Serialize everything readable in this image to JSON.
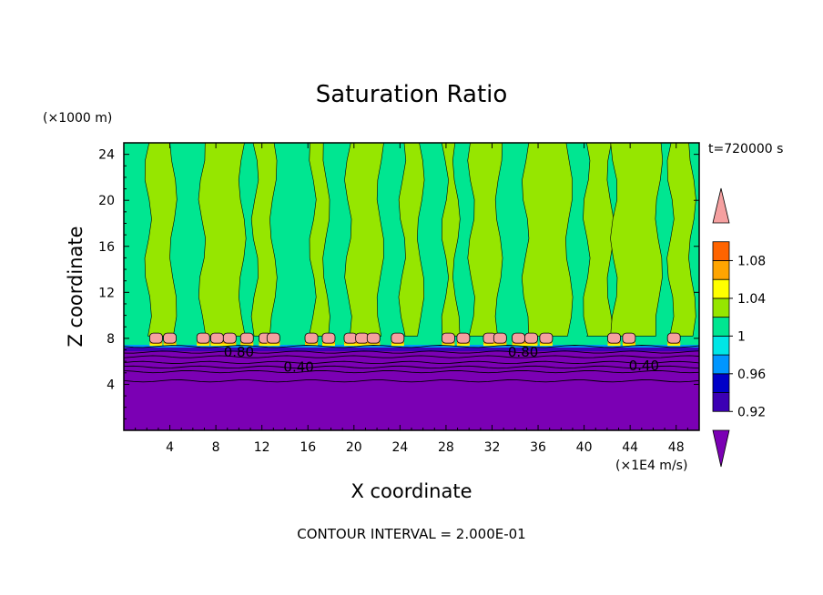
{
  "chart_data": {
    "type": "heatmap",
    "title": "Saturation Ratio",
    "xlabel": "X coordinate",
    "ylabel": "Z coordinate",
    "x_unit": "(×1E4 m/s)",
    "y_unit": "(×1000 m)",
    "time_label": "t=720000 s",
    "footer": "CONTOUR INTERVAL = 2.000E-01",
    "xlim": [
      0,
      50
    ],
    "ylim": [
      0,
      25
    ],
    "x_ticks": [
      4,
      8,
      12,
      16,
      20,
      24,
      28,
      32,
      36,
      40,
      44,
      48
    ],
    "x_tick_labels": [
      "4",
      "8",
      "12",
      "16",
      "20",
      "24",
      "28",
      "32",
      "36",
      "40",
      "44",
      "48"
    ],
    "y_ticks": [
      4,
      8,
      12,
      16,
      20,
      24
    ],
    "y_tick_labels": [
      "4",
      "8",
      "12",
      "16",
      "20",
      "24"
    ],
    "contour_labels": [
      {
        "text": "0.80",
        "x": 10,
        "z": 6.8
      },
      {
        "text": "0.40",
        "x": 15.2,
        "z": 5.5
      },
      {
        "text": "0.80",
        "x": 34.7,
        "z": 6.8
      },
      {
        "text": "0.40",
        "x": 45.2,
        "z": 5.6
      }
    ],
    "colorbar": {
      "levels": [
        0.92,
        0.94,
        0.96,
        0.98,
        1.0,
        1.02,
        1.04,
        1.06,
        1.08,
        1.1
      ],
      "colors": [
        "#7b00b4",
        "#3c00b4",
        "#0000c8",
        "#0096ff",
        "#00e6e6",
        "#00e691",
        "#96e600",
        "#ffff00",
        "#ffa500",
        "#ff6400",
        "#ff1e1e",
        "#f5a0a0"
      ],
      "tick_labels": [
        "0.92",
        "0.96",
        "1",
        "1.04",
        "1.08"
      ],
      "tick_values": [
        0.92,
        0.96,
        1.0,
        1.04,
        1.08
      ]
    },
    "field": {
      "background_value": "0.98–1.00",
      "lower_layer_top_z": 7.2,
      "lower_layer_value": "<0.92",
      "moist_columns_value": "1.00–1.02",
      "moist_columns_x": [
        [
          2.1,
          4.3
        ],
        [
          6.8,
          10.3
        ],
        [
          11.4,
          13.0
        ],
        [
          16.4,
          17.6
        ],
        [
          19.5,
          22.3
        ],
        [
          24.2,
          25.8
        ],
        [
          27.9,
          28.9
        ],
        [
          30.2,
          32.6
        ],
        [
          34.9,
          38.7
        ],
        [
          40.2,
          42.3
        ],
        [
          42.6,
          46.5
        ],
        [
          47.5,
          49.4
        ]
      ],
      "peak_cells_value": ">1.10",
      "peak_cells_x": [
        2.8,
        4.0,
        6.9,
        8.1,
        9.2,
        10.7,
        12.3,
        13.0,
        16.3,
        17.8,
        19.7,
        20.7,
        21.7,
        23.8,
        28.2,
        29.5,
        31.8,
        32.7,
        34.3,
        35.4,
        36.7,
        42.6,
        43.9,
        47.8
      ]
    }
  }
}
